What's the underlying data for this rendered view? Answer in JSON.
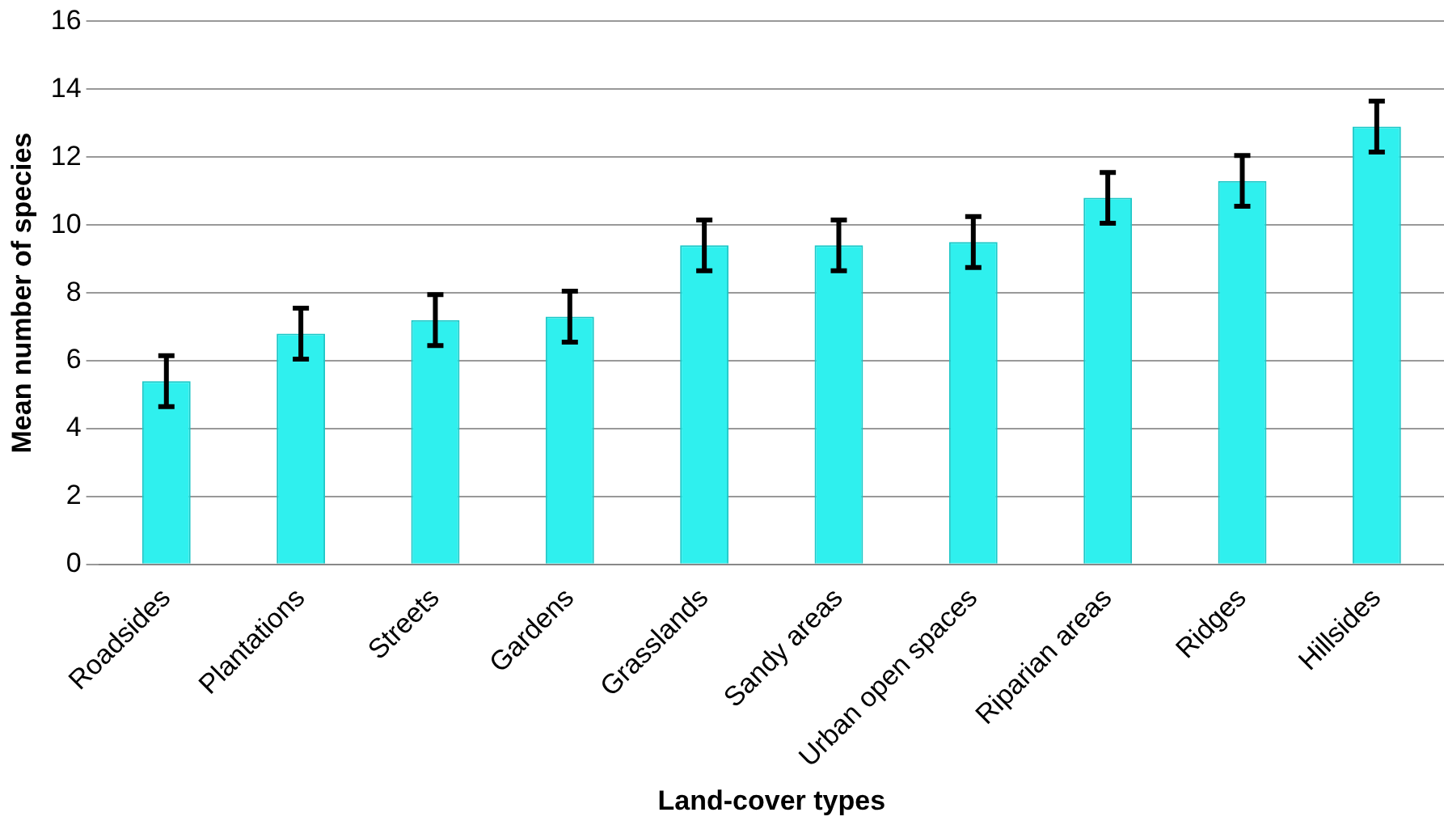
{
  "chart_data": {
    "type": "bar",
    "xlabel": "Land-cover types",
    "ylabel": "Mean number of species",
    "categories": [
      "Roadsides",
      "Plantations",
      "Streets",
      "Gardens",
      "Grasslands",
      "Sandy areas",
      "Urban open spaces",
      "Riparian areas",
      "Ridges",
      "Hillsides"
    ],
    "values": [
      5.4,
      6.8,
      7.2,
      7.3,
      9.4,
      9.4,
      9.5,
      10.8,
      11.3,
      12.9
    ],
    "errors": [
      0.75,
      0.75,
      0.75,
      0.75,
      0.75,
      0.75,
      0.75,
      0.75,
      0.75,
      0.75
    ],
    "color": "#2ff0ee",
    "ylim": [
      0,
      16
    ],
    "yticks": [
      0,
      2,
      4,
      6,
      8,
      10,
      12,
      14,
      16
    ],
    "grid": "y",
    "legend": false
  }
}
